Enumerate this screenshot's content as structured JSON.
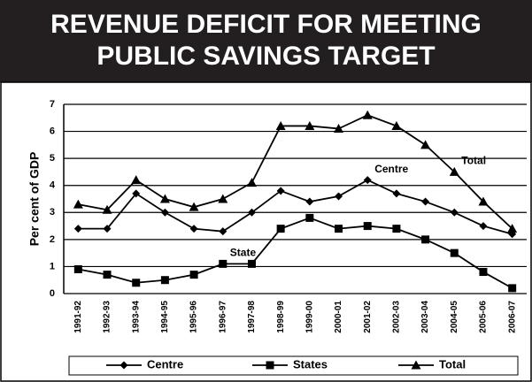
{
  "chart_data": {
    "type": "line",
    "title": "REVENUE DEFICIT FOR MEETING PUBLIC SAVINGS TARGET",
    "ylabel": "Per cent of GDP",
    "categories": [
      "1991-92",
      "1992-93",
      "1993-94",
      "1994-95",
      "1995-96",
      "1996-97",
      "1997-98",
      "1998-99",
      "1999-00",
      "2000-01",
      "2001-02",
      "2002-03",
      "2003-04",
      "2004-05",
      "2005-06",
      "2006-07"
    ],
    "series": [
      {
        "name": "Centre",
        "color": "#000000",
        "marker": "diamond",
        "values": [
          2.4,
          2.4,
          3.7,
          3.0,
          2.4,
          2.3,
          3.0,
          3.8,
          3.4,
          3.6,
          4.2,
          3.7,
          3.4,
          3.0,
          2.5,
          2.2
        ]
      },
      {
        "name": "States",
        "color": "#000000",
        "marker": "square",
        "values": [
          0.9,
          0.7,
          0.4,
          0.5,
          0.7,
          1.1,
          1.1,
          2.4,
          2.8,
          2.4,
          2.5,
          2.4,
          2.0,
          1.5,
          0.8,
          0.2
        ]
      },
      {
        "name": "Total",
        "color": "#000000",
        "marker": "triangle",
        "values": [
          3.3,
          3.1,
          4.2,
          3.5,
          3.2,
          3.5,
          4.1,
          6.2,
          6.2,
          6.1,
          6.6,
          6.2,
          5.5,
          4.5,
          3.4,
          2.4
        ]
      }
    ],
    "annotations": [
      {
        "text": "Total",
        "series": 2,
        "index": 13
      },
      {
        "text": "Centre",
        "series": 0,
        "index": 10
      },
      {
        "text": "State",
        "series": 1,
        "index": 5
      }
    ],
    "ylim": [
      0,
      7
    ],
    "yticks": [
      0,
      1,
      2,
      3,
      4,
      5,
      6,
      7
    ],
    "grid": true
  }
}
